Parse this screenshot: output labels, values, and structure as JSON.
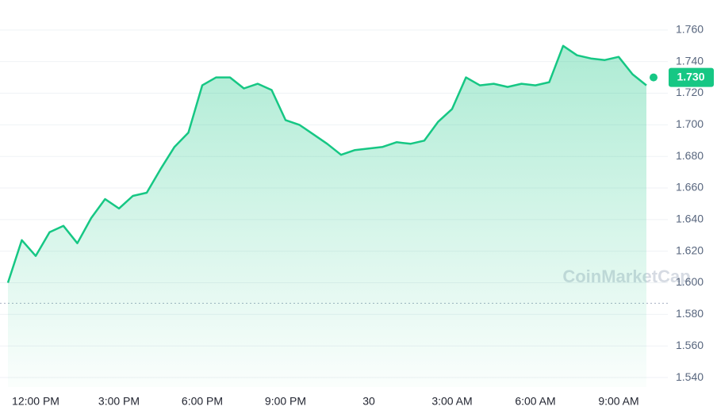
{
  "chart_data": {
    "type": "line",
    "color": "#16c784",
    "grid": true,
    "watermark": "CoinMarketCap",
    "categories": [
      null,
      null,
      "12:00 PM",
      null,
      null,
      null,
      null,
      null,
      "3:00 PM",
      null,
      null,
      null,
      null,
      null,
      "6:00 PM",
      null,
      null,
      null,
      null,
      null,
      "9:00 PM",
      null,
      null,
      null,
      null,
      null,
      "30",
      null,
      null,
      null,
      null,
      null,
      "3:00 AM",
      null,
      null,
      null,
      null,
      null,
      "6:00 AM",
      null,
      null,
      null,
      null,
      null,
      "9:00 AM",
      null,
      null
    ],
    "values": [
      1.6,
      1.627,
      1.617,
      1.632,
      1.636,
      1.625,
      1.641,
      1.653,
      1.647,
      1.655,
      1.657,
      1.672,
      1.686,
      1.695,
      1.725,
      1.73,
      1.73,
      1.723,
      1.726,
      1.722,
      1.703,
      1.7,
      1.694,
      1.688,
      1.681,
      1.684,
      1.685,
      1.686,
      1.689,
      1.688,
      1.69,
      1.702,
      1.71,
      1.73,
      1.725,
      1.726,
      1.724,
      1.726,
      1.725,
      1.727,
      1.75,
      1.744,
      1.742,
      1.741,
      1.743,
      1.732,
      1.725
    ],
    "open_price": 1.587,
    "current_price": {
      "value": 1.73,
      "label": "1.730"
    },
    "ylim": [
      1.534,
      1.779
    ],
    "yticks": [
      {
        "value": 1.54,
        "label": "1.540"
      },
      {
        "value": 1.56,
        "label": "1.560"
      },
      {
        "value": 1.58,
        "label": "1.580"
      },
      {
        "value": 1.6,
        "label": "1.600"
      },
      {
        "value": 1.62,
        "label": "1.620"
      },
      {
        "value": 1.64,
        "label": "1.640"
      },
      {
        "value": 1.66,
        "label": "1.660"
      },
      {
        "value": 1.68,
        "label": "1.680"
      },
      {
        "value": 1.7,
        "label": "1.700"
      },
      {
        "value": 1.72,
        "label": "1.720"
      },
      {
        "value": 1.74,
        "label": "1.740"
      },
      {
        "value": 1.76,
        "label": "1.760"
      }
    ]
  }
}
